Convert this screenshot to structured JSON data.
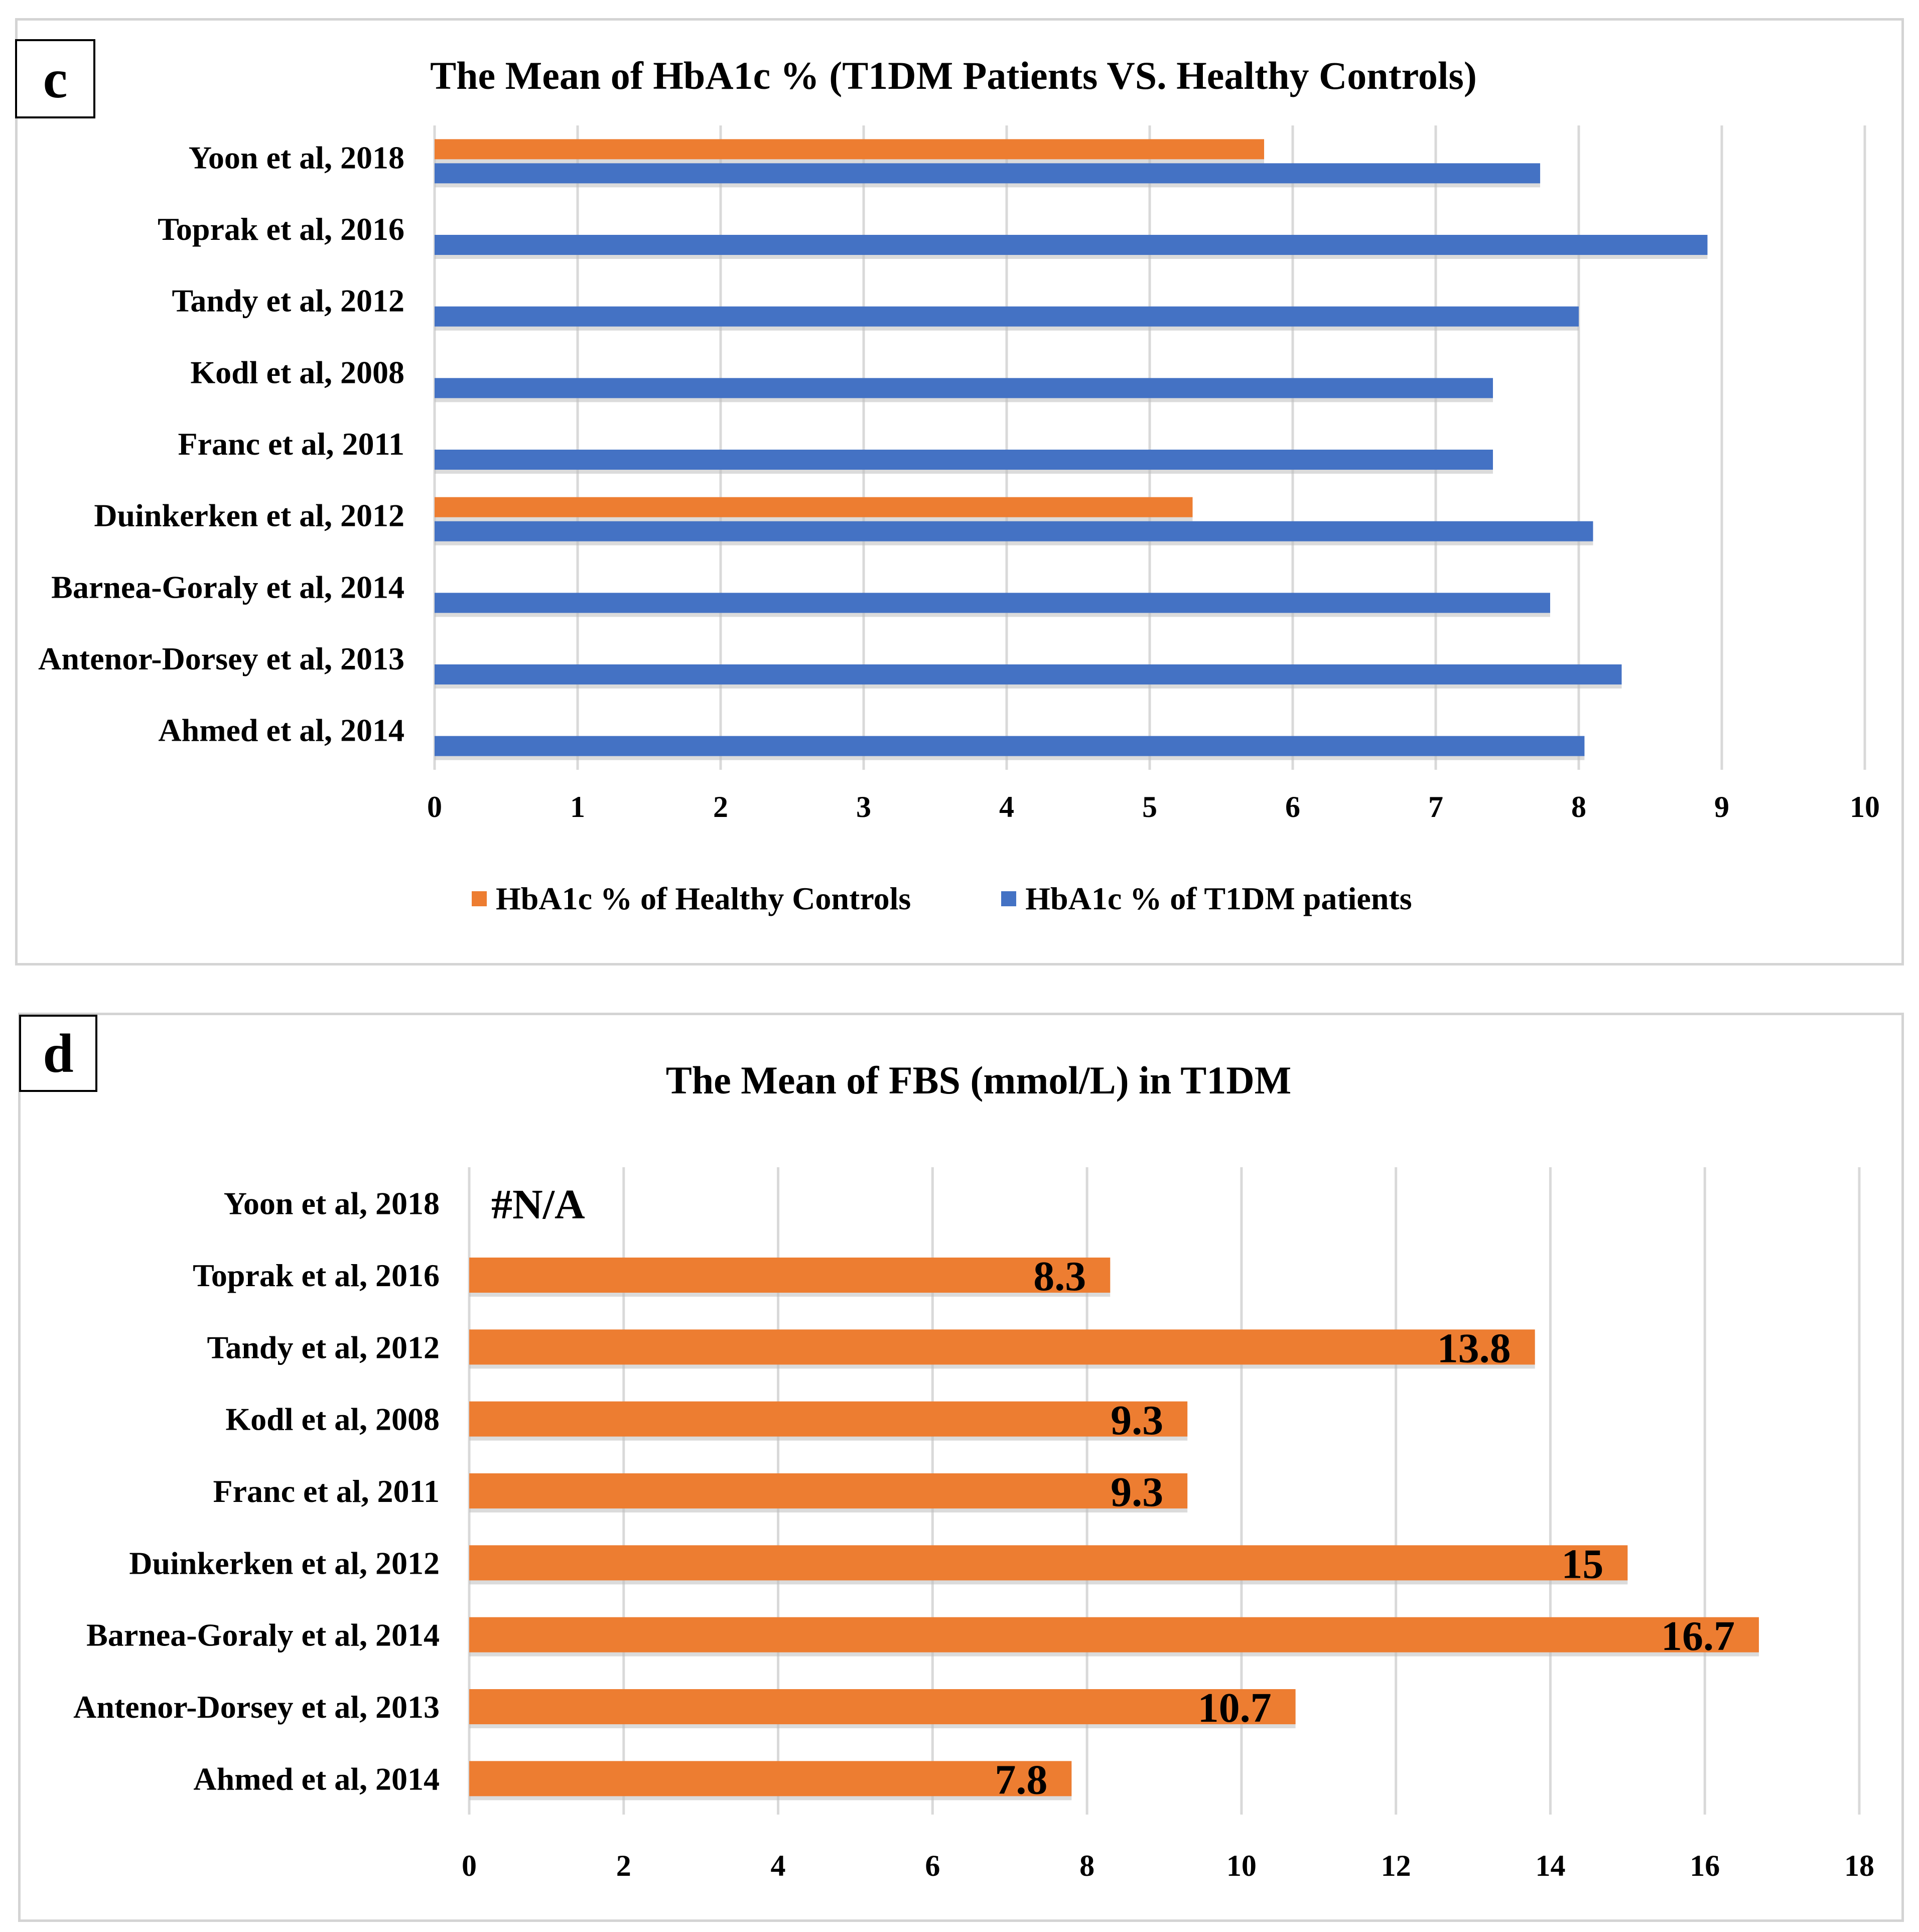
{
  "panels": [
    {
      "letter": "c",
      "chart_data": {
        "type": "bar",
        "orientation": "horizontal",
        "title": "The Mean of HbA1c % (T1DM Patients VS. Healthy Controls)",
        "categories": [
          "Yoon et al, 2018",
          "Toprak et al, 2016",
          "Tandy et al, 2012",
          "Kodl et al, 2008",
          "Franc et al, 2011",
          "Duinkerken et al, 2012",
          "Barnea-Goraly et al, 2014",
          "Antenor-Dorsey et al, 2013",
          "Ahmed et al, 2014"
        ],
        "series": [
          {
            "name": "HbA1c % of Healthy Controls",
            "color": "#ED7D31",
            "values": [
              5.8,
              null,
              null,
              null,
              null,
              5.3,
              null,
              null,
              null
            ]
          },
          {
            "name": "HbA1c % of T1DM patients",
            "color": "#4472C4",
            "values": [
              7.73,
              8.9,
              8.0,
              7.4,
              7.4,
              8.1,
              7.8,
              8.3,
              8.04
            ]
          }
        ],
        "xlim": [
          0,
          10
        ],
        "xticks": [
          "0",
          "1",
          "2",
          "3",
          "4",
          "5",
          "6",
          "7",
          "8",
          "9",
          "10"
        ],
        "grid": true,
        "legend_position": "bottom",
        "xlabel": "",
        "ylabel": ""
      }
    },
    {
      "letter": "d",
      "chart_data": {
        "type": "bar",
        "orientation": "horizontal",
        "title": "The Mean of FBS (mmol/L) in T1DM",
        "categories": [
          "Yoon et al, 2018",
          "Toprak et al, 2016",
          "Tandy et al, 2012",
          "Kodl et al, 2008",
          "Franc et al, 2011",
          "Duinkerken et al, 2012",
          "Barnea-Goraly et al, 2014",
          "Antenor-Dorsey et al, 2013",
          "Ahmed et al, 2014"
        ],
        "series": [
          {
            "name": "FBS (mmol/L)",
            "color": "#ED7D31",
            "values": [
              null,
              8.3,
              13.8,
              9.3,
              9.3,
              15,
              16.7,
              10.7,
              7.8
            ],
            "labels": [
              "#N/A",
              "8.3",
              "13.8",
              "9.3",
              "9.3",
              "15",
              "16.7",
              "10.7",
              "7.8"
            ]
          }
        ],
        "xlim": [
          0,
          18
        ],
        "xticks": [
          "0",
          "2",
          "4",
          "6",
          "8",
          "10",
          "12",
          "14",
          "16",
          "18"
        ],
        "grid": true,
        "xlabel": "",
        "ylabel": ""
      }
    }
  ]
}
